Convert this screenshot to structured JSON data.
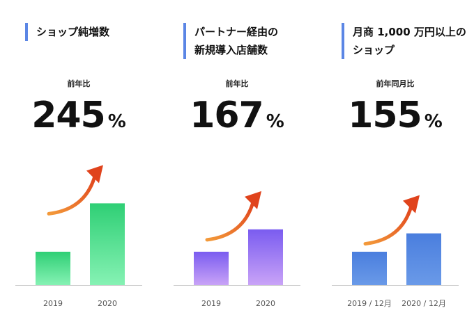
{
  "panels": [
    {
      "title_lines": [
        "ショップ純増数"
      ],
      "ylabel": "前年比",
      "big_value": "245",
      "big_unit": "%",
      "chart_data": {
        "type": "bar",
        "categories": [
          "2019",
          "2020"
        ],
        "values": [
          100,
          245
        ],
        "title": "ショップ純増数",
        "xlabel": "",
        "ylabel": "前年比",
        "ylim": [
          0,
          250
        ]
      },
      "colors": {
        "top": "#2fcf75",
        "bottom": "#86f2b4"
      }
    },
    {
      "title_lines": [
        "パートナー経由の",
        "新規導入店舗数"
      ],
      "ylabel": "前年比",
      "big_value": "167",
      "big_unit": "%",
      "chart_data": {
        "type": "bar",
        "categories": [
          "2019",
          "2020"
        ],
        "values": [
          100,
          167
        ],
        "title": "パートナー経由の新規導入店舗数",
        "xlabel": "",
        "ylabel": "前年比",
        "ylim": [
          0,
          170
        ]
      },
      "colors": {
        "top": "#7a5cf0",
        "bottom": "#c9a3f7"
      }
    },
    {
      "title_lines": [
        "月商 1,000 万円以上の",
        "ショップ"
      ],
      "ylabel": "前年同月比",
      "big_value": "155",
      "big_unit": "%",
      "chart_data": {
        "type": "bar",
        "categories": [
          "2019 / 12月",
          "2020 / 12月"
        ],
        "values": [
          100,
          155
        ],
        "title": "月商 1,000 万円以上のショップ",
        "xlabel": "",
        "ylabel": "前年同月比",
        "ylim": [
          0,
          170
        ]
      },
      "colors": {
        "top": "#4a7ede",
        "bottom": "#6a9ae8"
      }
    }
  ],
  "arrow_colors": {
    "start": "#f39a3a",
    "end": "#e0431c"
  }
}
